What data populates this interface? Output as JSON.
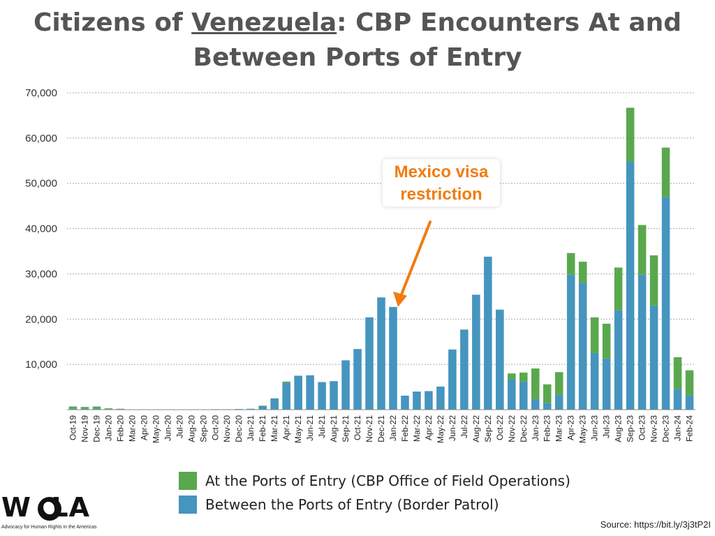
{
  "title": {
    "prefix": "Citizens of ",
    "country": "Venezuela",
    "suffix": ": CBP Encounters At and Between Ports of Entry"
  },
  "colors": {
    "ports": "#5aa84e",
    "border_patrol": "#4595bf",
    "annotation": "#f07c10",
    "grid": "#aaaaaa"
  },
  "legend": [
    {
      "label": "At the Ports of Entry (CBP Office of Field Operations)",
      "color": "#5aa84e"
    },
    {
      "label": "Between the Ports of Entry (Border Patrol)",
      "color": "#4595bf"
    }
  ],
  "source": "Source: https://bit.ly/3j3tP2I",
  "logo": {
    "wordmark": "WOLA",
    "tagline": "Advocacy for Human Rights in the Americas"
  },
  "chart_data": {
    "type": "bar",
    "stacked": true,
    "ylim": [
      0,
      70000
    ],
    "yticks": [
      10000,
      20000,
      30000,
      40000,
      50000,
      60000,
      70000
    ],
    "ytick_labels": [
      "10,000",
      "20,000",
      "30,000",
      "40,000",
      "50,000",
      "60,000",
      "70,000"
    ],
    "grid": true,
    "legend_position": "bottom",
    "categories": [
      "Oct-19",
      "Nov-19",
      "Dec-19",
      "Jan-20",
      "Feb-20",
      "Mar-20",
      "Apr-20",
      "May-20",
      "Jun-20",
      "Jul-20",
      "Aug-20",
      "Sep-20",
      "Oct-20",
      "Nov-20",
      "Dec-20",
      "Jan-21",
      "Feb-21",
      "Mar-21",
      "Apr-21",
      "May-21",
      "Jun-21",
      "Jul-21",
      "Aug-21",
      "Sep-21",
      "Oct-21",
      "Nov-21",
      "Dec-21",
      "Jan-22",
      "Feb-22",
      "Mar-22",
      "Apr-22",
      "May-22",
      "Jun-22",
      "Jul-22",
      "Aug-22",
      "Sep-22",
      "Oct-22",
      "Nov-22",
      "Dec-22",
      "Jan-23",
      "Feb-23",
      "Mar-23",
      "Apr-23",
      "May-23",
      "Jun-23",
      "Jul-23",
      "Aug-23",
      "Sep-23",
      "Oct-23",
      "Nov-23",
      "Dec-23",
      "Jan-24",
      "Feb-24"
    ],
    "series": [
      {
        "name": "Between the Ports of Entry (Border Patrol)",
        "values": [
          200,
          200,
          250,
          100,
          60,
          20,
          10,
          10,
          10,
          10,
          10,
          10,
          100,
          100,
          150,
          200,
          800,
          2500,
          6000,
          7500,
          7600,
          6100,
          6300,
          10900,
          13400,
          20400,
          24800,
          22700,
          3100,
          4000,
          4100,
          5100,
          13300,
          17700,
          25400,
          33800,
          22100,
          6800,
          6200,
          2300,
          1500,
          3300,
          29800,
          28000,
          12500,
          11300,
          22000,
          54800,
          29800,
          23000,
          47000,
          4600,
          3100
        ]
      },
      {
        "name": "At the Ports of Entry (CBP Office of Field Operations)",
        "values": [
          500,
          400,
          450,
          200,
          140,
          40,
          0,
          0,
          0,
          0,
          0,
          0,
          0,
          0,
          0,
          0,
          100,
          0,
          200,
          0,
          0,
          0,
          0,
          0,
          0,
          0,
          0,
          0,
          0,
          0,
          0,
          0,
          0,
          0,
          0,
          0,
          0,
          1200,
          2000,
          6800,
          4100,
          5000,
          4800,
          4700,
          7900,
          7700,
          9400,
          11900,
          11000,
          11100,
          10900,
          7000,
          5600
        ]
      }
    ],
    "annotations": [
      {
        "text_lines": [
          "Mexico visa",
          "restriction"
        ],
        "points_to": "Jan-22"
      }
    ]
  }
}
